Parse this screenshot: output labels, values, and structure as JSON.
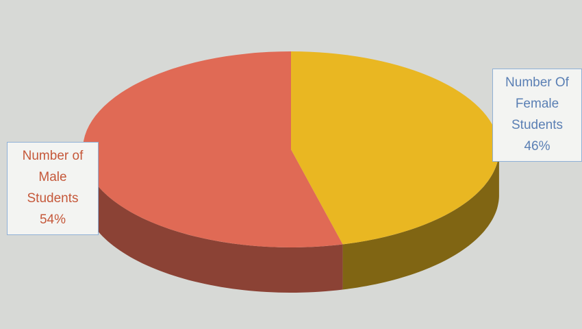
{
  "chart_data": {
    "type": "pie",
    "style": "3d",
    "slices": [
      {
        "label_lines": [
          "Number of",
          "Male",
          "Students"
        ],
        "percent_label": "54%",
        "value": 54,
        "color": "#e06a55"
      },
      {
        "label_lines": [
          "Number Of",
          "Female",
          "Students"
        ],
        "percent_label": "46%",
        "value": 46,
        "color": "#e9b722"
      }
    ]
  }
}
